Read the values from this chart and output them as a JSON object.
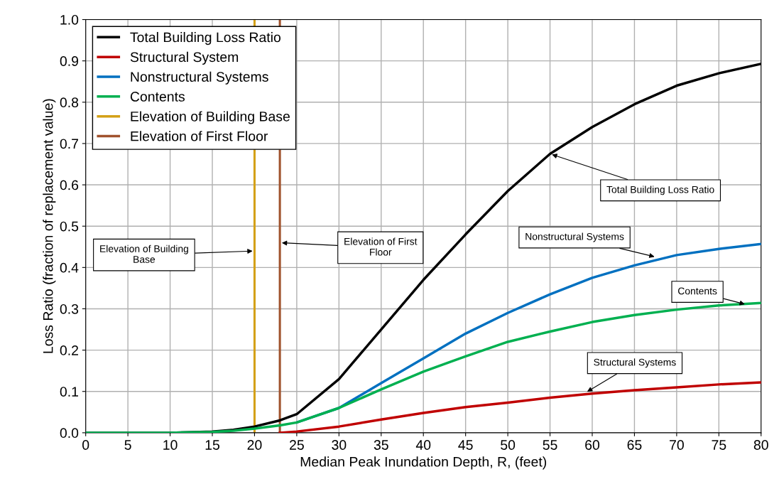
{
  "chart_data": {
    "type": "line",
    "xlabel": "Median Peak Inundation Depth, R, (feet)",
    "ylabel": "Loss Ratio (fraction of replacement value)",
    "x": [
      0,
      5,
      10,
      15,
      17.5,
      20,
      23,
      25,
      30,
      35,
      40,
      45,
      50,
      55,
      60,
      65,
      70,
      75,
      80
    ],
    "series": [
      {
        "name": "Total Building Loss Ratio",
        "color": "#000000",
        "values": [
          0,
          0,
          0,
          0.003,
          0.007,
          0.015,
          0.03,
          0.045,
          0.13,
          0.25,
          0.37,
          0.48,
          0.585,
          0.675,
          0.74,
          0.795,
          0.84,
          0.87,
          0.893
        ]
      },
      {
        "name": "Structural System",
        "color": "#c00000",
        "x": [
          23,
          25,
          30,
          35,
          40,
          45,
          50,
          55,
          60,
          65,
          70,
          75,
          80
        ],
        "values": [
          0,
          0.003,
          0.015,
          0.032,
          0.048,
          0.062,
          0.073,
          0.085,
          0.095,
          0.103,
          0.11,
          0.117,
          0.122
        ]
      },
      {
        "name": "Nonstructural Systems",
        "color": "#0070c0",
        "x": [
          25,
          30,
          35,
          40,
          45,
          50,
          55,
          60,
          65,
          70,
          75,
          80
        ],
        "values": [
          0.025,
          0.06,
          0.12,
          0.18,
          0.24,
          0.29,
          0.335,
          0.375,
          0.405,
          0.43,
          0.445,
          0.457
        ]
      },
      {
        "name": "Contents",
        "color": "#00b050",
        "values": [
          0,
          0,
          0,
          0.002,
          0.005,
          0.01,
          0.018,
          0.025,
          0.06,
          0.105,
          0.148,
          0.185,
          0.22,
          0.245,
          0.268,
          0.285,
          0.298,
          0.308,
          0.314
        ]
      }
    ],
    "ref_lines": [
      {
        "axis": "x",
        "value": 20,
        "label": "Elevation of Building Base",
        "color": "#d4a017"
      },
      {
        "axis": "x",
        "value": 23,
        "label": "Elevation of First Floor",
        "color": "#a0522d"
      }
    ],
    "annotations": [
      {
        "text": "Total Building Loss Ratio",
        "x": 55,
        "y": 0.675
      },
      {
        "text": "Nonstructural Systems",
        "x": 67.6,
        "y": 0.425
      },
      {
        "text": "Contents",
        "x": 78.3,
        "y": 0.31
      },
      {
        "text": "Structural Systems",
        "x": 59.2,
        "y": 0.097
      },
      {
        "text": "Elevation of Building\nBase",
        "x": 20,
        "y": 0.44
      },
      {
        "text": "Elevation of First\nFloor",
        "x": 23,
        "y": 0.46
      }
    ],
    "xlim": [
      0,
      80
    ],
    "ylim": [
      0,
      1
    ],
    "xticks": [
      0,
      5,
      10,
      15,
      20,
      25,
      30,
      35,
      40,
      45,
      50,
      55,
      60,
      65,
      70,
      75,
      80
    ],
    "yticks": [
      {
        "value": 0,
        "label": "0.0"
      },
      {
        "value": 0.1,
        "label": "0.1"
      },
      {
        "value": 0.2,
        "label": "0.2"
      },
      {
        "value": 0.3,
        "label": "0.3"
      },
      {
        "value": 0.4,
        "label": "0.4"
      },
      {
        "value": 0.5,
        "label": "0.5"
      },
      {
        "value": 0.6,
        "label": "0.6"
      },
      {
        "value": 0.7,
        "label": "0.7"
      },
      {
        "value": 0.8,
        "label": "0.8"
      },
      {
        "value": 0.9,
        "label": "0.9"
      },
      {
        "value": 1,
        "label": "1.0"
      }
    ],
    "grid": true,
    "legend": "top left",
    "line_style": "solid",
    "marker": "none"
  }
}
